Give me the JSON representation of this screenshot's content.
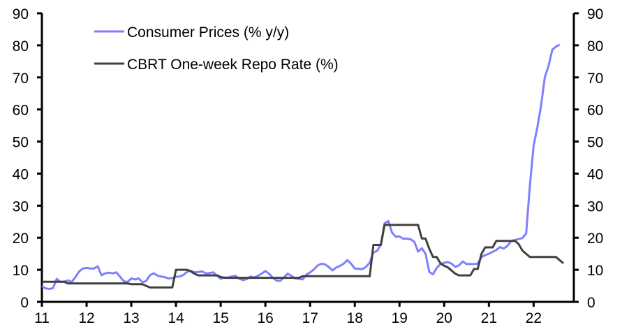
{
  "chart_data": {
    "type": "line",
    "title": "",
    "xlabel": "",
    "ylabel": "",
    "ylabel_right": "",
    "x_start": 2011.0,
    "x_step_months": 1,
    "xlim": [
      2011,
      2022.9
    ],
    "ylim": [
      0,
      90
    ],
    "ylim_right": [
      0,
      90
    ],
    "x_ticks": [
      2011,
      2012,
      2013,
      2014,
      2015,
      2016,
      2017,
      2018,
      2019,
      2020,
      2021,
      2022
    ],
    "x_tick_labels": [
      "11",
      "12",
      "13",
      "14",
      "15",
      "16",
      "17",
      "18",
      "19",
      "20",
      "21",
      "22"
    ],
    "y_ticks": [
      0,
      10,
      20,
      30,
      40,
      50,
      60,
      70,
      80,
      90
    ],
    "y_tick_labels": [
      "0",
      "10",
      "20",
      "30",
      "40",
      "50",
      "60",
      "70",
      "80",
      "90"
    ],
    "grid": false,
    "legend_position": "top-left",
    "series": [
      {
        "name": "Consumer Prices (% y/y)",
        "color": "#7f7fff",
        "axis": "left",
        "values": [
          4.9,
          4.2,
          4.0,
          4.3,
          7.2,
          6.2,
          6.3,
          6.7,
          6.2,
          7.7,
          9.5,
          10.4,
          10.6,
          10.4,
          10.4,
          11.1,
          8.3,
          8.9,
          9.1,
          8.9,
          9.2,
          7.8,
          6.4,
          6.2,
          7.3,
          7.0,
          7.3,
          6.1,
          6.5,
          8.3,
          8.9,
          8.2,
          7.9,
          7.7,
          7.3,
          7.4,
          7.8,
          7.9,
          8.4,
          9.4,
          9.7,
          9.2,
          9.3,
          9.5,
          8.9,
          9.0,
          9.2,
          8.2,
          7.2,
          7.6,
          7.6,
          7.9,
          8.1,
          7.2,
          6.8,
          7.1,
          7.9,
          7.6,
          8.1,
          8.8,
          9.6,
          8.8,
          7.5,
          6.6,
          6.6,
          7.6,
          8.8,
          8.1,
          7.3,
          7.2,
          7.0,
          8.5,
          9.2,
          10.1,
          11.3,
          11.9,
          11.7,
          10.9,
          9.8,
          10.7,
          11.2,
          11.9,
          13.0,
          11.9,
          10.4,
          10.3,
          10.2,
          10.9,
          12.2,
          15.4,
          15.9,
          17.9,
          24.5,
          25.2,
          21.6,
          20.3,
          20.4,
          19.7,
          19.7,
          19.5,
          18.7,
          15.7,
          16.7,
          15.0,
          9.3,
          8.6,
          10.6,
          11.8,
          12.2,
          12.4,
          11.9,
          10.9,
          11.4,
          12.6,
          11.8,
          11.8,
          11.8,
          11.9,
          14.0,
          14.6,
          15.0,
          15.6,
          16.2,
          17.1,
          16.6,
          17.5,
          19.0,
          19.3,
          19.6,
          19.9,
          21.3,
          36.1,
          48.7,
          54.4,
          61.1,
          70.0,
          73.5,
          78.6,
          79.6,
          80.2
        ]
      },
      {
        "name": "CBRT One-week Repo Rate (%)",
        "color": "#404040",
        "axis": "right",
        "values": [
          6.25,
          6.25,
          6.25,
          6.25,
          6.25,
          6.25,
          6.25,
          5.75,
          5.75,
          5.75,
          5.75,
          5.75,
          5.75,
          5.75,
          5.75,
          5.75,
          5.75,
          5.75,
          5.75,
          5.75,
          5.75,
          5.75,
          5.75,
          5.75,
          5.5,
          5.5,
          5.5,
          5.5,
          5.0,
          4.5,
          4.5,
          4.5,
          4.5,
          4.5,
          4.5,
          4.5,
          10,
          10,
          10,
          10,
          9.5,
          8.75,
          8.25,
          8.25,
          8.25,
          8.25,
          8.25,
          8.25,
          7.75,
          7.5,
          7.5,
          7.5,
          7.5,
          7.5,
          7.5,
          7.5,
          7.5,
          7.5,
          7.5,
          7.5,
          7.5,
          7.5,
          7.5,
          7.5,
          7.5,
          7.5,
          7.5,
          7.5,
          7.5,
          7.5,
          8,
          8,
          8,
          8,
          8,
          8,
          8,
          8,
          8,
          8,
          8,
          8,
          8,
          8,
          8,
          8,
          8,
          8,
          8,
          17.75,
          17.75,
          17.75,
          24,
          24,
          24,
          24,
          24,
          24,
          24,
          24,
          24,
          24,
          19.75,
          19.75,
          16.5,
          14,
          14,
          12,
          11.25,
          10.75,
          9.75,
          8.75,
          8.25,
          8.25,
          8.25,
          8.25,
          10.25,
          10.25,
          15,
          17,
          17,
          17,
          19,
          19,
          19,
          19,
          19,
          19,
          18,
          16,
          15,
          14,
          14,
          14,
          14,
          14,
          14,
          14,
          14,
          13,
          12
        ]
      }
    ]
  }
}
